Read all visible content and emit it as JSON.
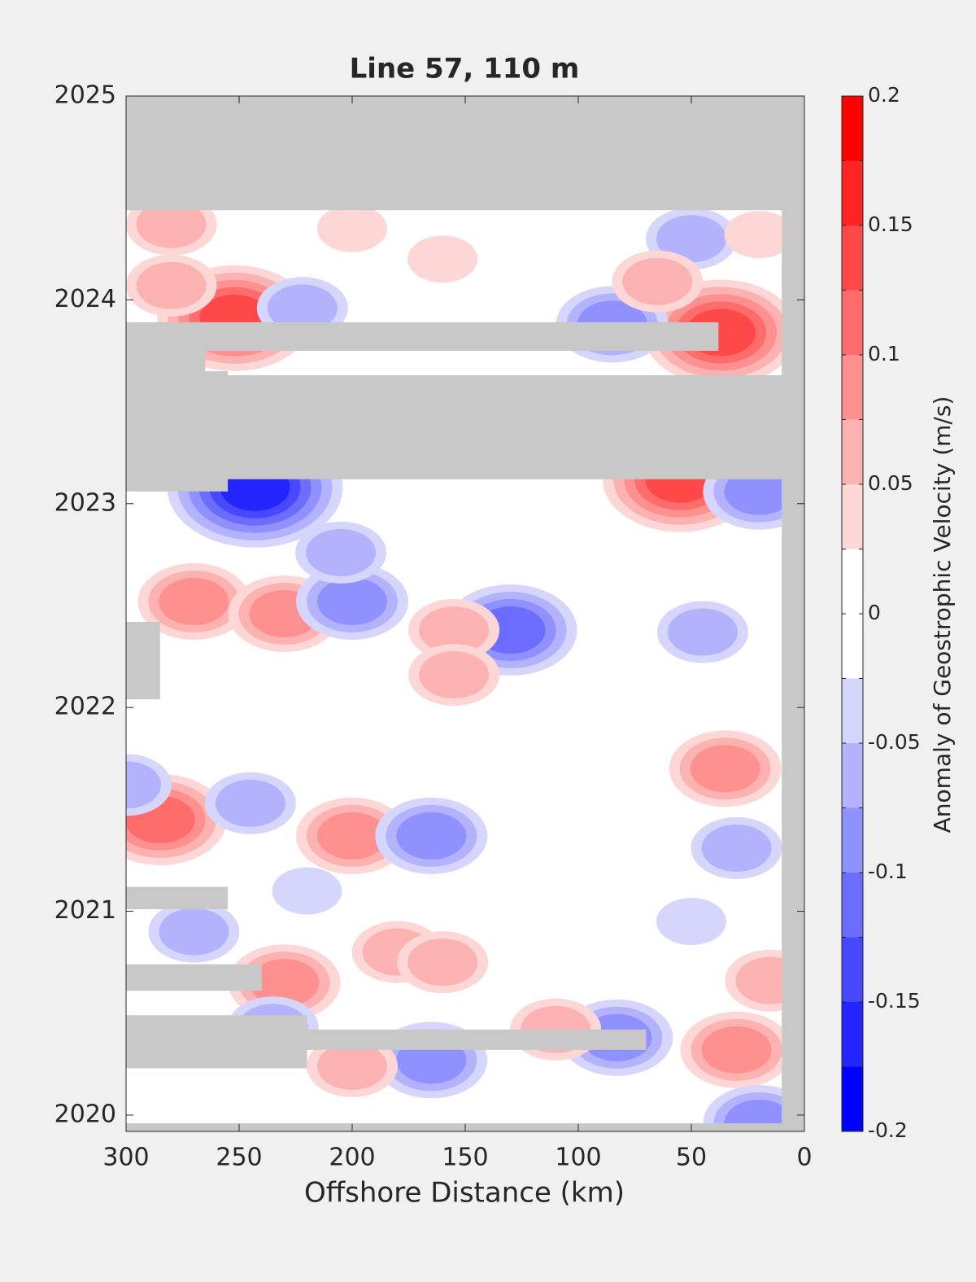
{
  "chart_data": {
    "type": "contour",
    "title": "Line 57, 110 m",
    "xlabel": "Offshore Distance (km)",
    "colorbar_label": "Anomaly of Geostrophic Velocity (m/s)",
    "xlim": [
      300,
      0
    ],
    "xticks": [
      300,
      250,
      200,
      150,
      100,
      50,
      0
    ],
    "ylim": [
      2019.92,
      2025
    ],
    "yticks": [
      2020,
      2021,
      2022,
      2023,
      2024,
      2025
    ],
    "clim": [
      -0.2,
      0.2
    ],
    "cticks": [
      -0.2,
      -0.15,
      -0.1,
      -0.05,
      0,
      0.05,
      0.1,
      0.15,
      0.2
    ],
    "levels": [
      -0.2,
      -0.175,
      -0.15,
      -0.125,
      -0.1,
      -0.075,
      -0.05,
      -0.025,
      0,
      0.025,
      0.05,
      0.075,
      0.1,
      0.125,
      0.15,
      0.175,
      0.2
    ],
    "colors": [
      "#0000ff",
      "#2424ff",
      "#4848ff",
      "#6c6cff",
      "#9090fe",
      "#b2b2fd",
      "#d6d6fd",
      "#ffffff",
      "#ffffff",
      "#fdd6d6",
      "#fdb2b2",
      "#fe9090",
      "#ff6c6c",
      "#ff4848",
      "#ff2424",
      "#ff0000"
    ],
    "no_data_color": "#c8c8c8",
    "no_data": [
      {
        "x": [
          300,
          0
        ],
        "y": [
          2024.44,
          2025
        ]
      },
      {
        "x": [
          10,
          0
        ],
        "y": [
          2019.92,
          2025
        ]
      },
      {
        "x": [
          300,
          0
        ],
        "y": [
          2019.92,
          2019.96
        ]
      },
      {
        "x": [
          300,
          10
        ],
        "y": [
          2023.12,
          2023.63
        ]
      },
      {
        "x": [
          300,
          255
        ],
        "y": [
          2023.06,
          2023.65
        ]
      },
      {
        "x": [
          300,
          38
        ],
        "y": [
          2023.75,
          2023.89
        ]
      },
      {
        "x": [
          300,
          265
        ],
        "y": [
          2023.65,
          2023.89
        ]
      },
      {
        "x": [
          300,
          285
        ],
        "y": [
          2022.04,
          2022.42
        ]
      },
      {
        "x": [
          300,
          255
        ],
        "y": [
          2021.01,
          2021.12
        ]
      },
      {
        "x": [
          300,
          240
        ],
        "y": [
          2020.61,
          2020.74
        ]
      },
      {
        "x": [
          300,
          220
        ],
        "y": [
          2020.23,
          2020.49
        ]
      },
      {
        "x": [
          300,
          70
        ],
        "y": [
          2020.32,
          2020.42
        ]
      }
    ],
    "features": [
      {
        "x": 252,
        "y": 2023.91,
        "value": 0.15
      },
      {
        "x": 37,
        "y": 2023.84,
        "value": 0.15
      },
      {
        "x": 55,
        "y": 2023.12,
        "value": 0.15
      },
      {
        "x": 243,
        "y": 2023.08,
        "value": -0.175
      },
      {
        "x": 280,
        "y": 2024.37,
        "value": 0.075
      },
      {
        "x": 200,
        "y": 2024.35,
        "value": 0.05
      },
      {
        "x": 280,
        "y": 2024.07,
        "value": 0.075
      },
      {
        "x": 222,
        "y": 2023.96,
        "value": -0.075
      },
      {
        "x": 85,
        "y": 2023.88,
        "value": -0.1
      },
      {
        "x": 50,
        "y": 2024.3,
        "value": -0.075
      },
      {
        "x": 20,
        "y": 2024.32,
        "value": 0.05
      },
      {
        "x": 160,
        "y": 2024.2,
        "value": 0.05
      },
      {
        "x": 65,
        "y": 2024.09,
        "value": 0.075
      },
      {
        "x": 20,
        "y": 2023.06,
        "value": -0.1
      },
      {
        "x": 270,
        "y": 2022.52,
        "value": 0.1
      },
      {
        "x": 230,
        "y": 2022.46,
        "value": 0.1
      },
      {
        "x": 200,
        "y": 2022.52,
        "value": -0.1
      },
      {
        "x": 130,
        "y": 2022.38,
        "value": -0.125
      },
      {
        "x": 205,
        "y": 2022.76,
        "value": -0.075
      },
      {
        "x": 155,
        "y": 2022.38,
        "value": 0.075
      },
      {
        "x": 155,
        "y": 2022.16,
        "value": 0.075
      },
      {
        "x": 285,
        "y": 2021.45,
        "value": 0.125
      },
      {
        "x": 200,
        "y": 2021.37,
        "value": 0.1
      },
      {
        "x": 165,
        "y": 2021.37,
        "value": -0.1
      },
      {
        "x": 35,
        "y": 2021.7,
        "value": 0.1
      },
      {
        "x": 30,
        "y": 2021.31,
        "value": -0.075
      },
      {
        "x": 45,
        "y": 2022.37,
        "value": -0.075
      },
      {
        "x": 245,
        "y": 2021.53,
        "value": -0.075
      },
      {
        "x": 300,
        "y": 2021.62,
        "value": -0.075
      },
      {
        "x": 230,
        "y": 2020.65,
        "value": 0.1
      },
      {
        "x": 180,
        "y": 2020.8,
        "value": 0.075
      },
      {
        "x": 160,
        "y": 2020.75,
        "value": 0.075
      },
      {
        "x": 30,
        "y": 2020.32,
        "value": 0.1
      },
      {
        "x": 15,
        "y": 2020.66,
        "value": 0.075
      },
      {
        "x": 165,
        "y": 2020.27,
        "value": -0.1
      },
      {
        "x": 200,
        "y": 2020.24,
        "value": 0.075
      },
      {
        "x": 83,
        "y": 2020.38,
        "value": -0.1
      },
      {
        "x": 110,
        "y": 2020.42,
        "value": 0.075
      },
      {
        "x": 20,
        "y": 2019.96,
        "value": -0.1
      },
      {
        "x": 235,
        "y": 2020.43,
        "value": -0.075
      },
      {
        "x": 270,
        "y": 2020.9,
        "value": -0.075
      },
      {
        "x": 220,
        "y": 2021.1,
        "value": -0.05
      },
      {
        "x": 50,
        "y": 2020.95,
        "value": -0.05
      }
    ]
  }
}
